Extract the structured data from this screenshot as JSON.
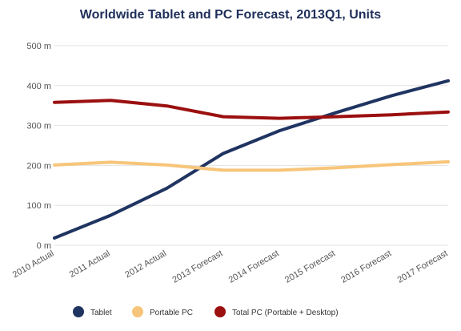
{
  "chart_data": {
    "type": "line",
    "title": "Worldwide Tablet and PC Forecast, 2013Q1, Units",
    "xlabel": "",
    "ylabel": "",
    "categories": [
      "2010 Actual",
      "2011 Actual",
      "2012 Actual",
      "2013 Forecast",
      "2014 Forecast",
      "2015 Forecast",
      "2016 Forecast",
      "2017 Forecast"
    ],
    "y_ticks": [
      "0 m",
      "100 m",
      "200 m",
      "300 m",
      "400 m",
      "500 m"
    ],
    "ylim": [
      0,
      500
    ],
    "grid": true,
    "legend_position": "bottom",
    "series": [
      {
        "name": "Tablet",
        "color": "#1f3461",
        "values": [
          18,
          75,
          143,
          230,
          287,
          332,
          375,
          412
        ]
      },
      {
        "name": "Portable PC",
        "color": "#f7c57a",
        "values": [
          201,
          208,
          201,
          188,
          188,
          194,
          202,
          209
        ]
      },
      {
        "name": "Total PC (Portable + Desktop)",
        "color": "#9b0f0f",
        "values": [
          358,
          363,
          349,
          322,
          318,
          322,
          327,
          334
        ]
      }
    ]
  }
}
